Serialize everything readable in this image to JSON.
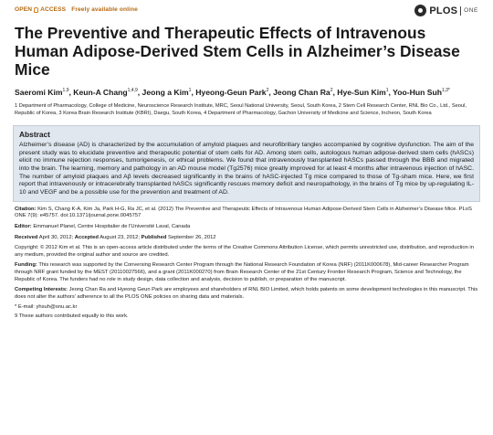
{
  "header": {
    "open": "OPEN",
    "access": "ACCESS",
    "freely": "Freely available online",
    "brand": "PLOS",
    "brand_sub": "ONE"
  },
  "title": "The Preventive and Therapeutic Effects of Intravenous Human Adipose-Derived Stem Cells in Alzheimer’s Disease Mice",
  "authors": [
    {
      "name": "Saeromi Kim",
      "sup": "1,9"
    },
    {
      "name": "Keun-A Chang",
      "sup": "1,4,9"
    },
    {
      "name": "Jeong a Kim",
      "sup": "1"
    },
    {
      "name": "Hyeong-Geun Park",
      "sup": "2"
    },
    {
      "name": "Jeong Chan Ra",
      "sup": "2"
    },
    {
      "name": "Hye-Sun Kim",
      "sup": "1"
    },
    {
      "name": "Yoo-Hun Suh",
      "sup": "1,3*"
    }
  ],
  "affiliations": "1 Department of Pharmacology, College of Medicine, Neuroscience Research Institute, MRC, Seoul National University, Seoul, South Korea, 2 Stem Cell Research Center, RNL Bio Co., Ltd., Seoul, Republic of Korea, 3 Korea Brain Research Institute (KBRI), Daegu, South Korea, 4 Department of Pharmacology, Gachon University of Medicine and Science, Incheon, South Korea",
  "abstract": {
    "heading": "Abstract",
    "text": "Alzheimer’s disease (AD) is characterized by the accumulation of amyloid plaques and neurofibrillary tangles accompanied by cognitive dysfunction. The aim of the present study was to elucidate preventive and therapeutic potential of stem cells for AD. Among stem cells, autologous human adipose-derived stem cells (hASCs) elicit no immune rejection responses, tumorigenesis, or ethical problems. We found that intravenously transplanted hASCs passed through the BBB and migrated into the brain. The learning, memory and pathology in an AD mouse model (Tg2576) mice greatly improved for at least 4 months after intravenous injection of hASC. The number of amyloid plaques and Aβ levels decreased significantly in the brains of hASC-injected Tg mice compared to those of Tg-sham mice. Here, we first report that intravenously or intracerebrally transplanted hASCs significantly rescues memory deficit and neuropathology, in the brains of Tg mice by up-regulating IL-10 and VEGF and be a possible use for the prevention and treatment of AD."
  },
  "citation": {
    "label": "Citation:",
    "text": "Kim S, Chang K-A, Kim Ja, Park H-G, Ra JC, et al. (2012) The Preventive and Therapeutic Effects of Intravenous Human Adipose-Derived Stem Cells in Alzheimer’s Disease Mice. PLoS ONE 7(9): e45757. doi:10.1371/journal.pone.0045757"
  },
  "editor": {
    "label": "Editor:",
    "text": "Emmanuel Planel, Centre Hospitalier de l'Université Laval, Canada"
  },
  "dates": {
    "received_label": "Received",
    "received": "April 30, 2012;",
    "accepted_label": "Accepted",
    "accepted": "August 23, 2012;",
    "published_label": "Published",
    "published": "September 26, 2012"
  },
  "copyright": {
    "text": "Copyright: © 2012 Kim et al. This is an open-access article distributed under the terms of the Creative Commons Attribution License, which permits unrestricted use, distribution, and reproduction in any medium, provided the original author and source are credited."
  },
  "funding": {
    "label": "Funding:",
    "text": "This research was supported by the Conversing Research Center Program through the National Research Foundation of Korea (NRF) (2011K000678), Mid-career Researcher Program through NRF grant funded by the MEST (20110027566), and a grant (2011K000270) from Brain Research Center of the 21st Century Frontier Research Program, Science and Technology, the Republic of Korea. The funders had no role in study design, data collection and analysis, decision to publish, or preparation of the manuscript."
  },
  "competing": {
    "label": "Competing Interests:",
    "text": "Jeong Chan Ra and Hyeong Geun Park are employees and shareholders of RNL BIO Limited, which holds patents on some development technologies in this manuscript. This does not alter the authors’ adherence to all the PLOS ONE policies on sharing data and materials."
  },
  "footnotes": {
    "email": "* E-mail: yhsuh@snu.ac.kr",
    "equal": "9 These authors contributed equally to this work."
  }
}
